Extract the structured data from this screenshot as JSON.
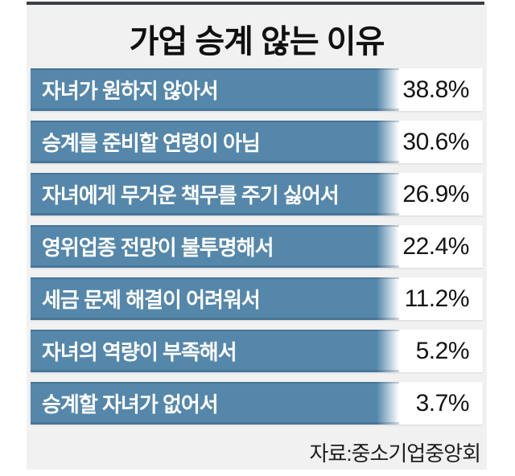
{
  "title": "가업 승계 않는 이유",
  "source": "자료:중소기업중앙회",
  "colors": {
    "bar": "#5587ab",
    "panel_background": "#f1f1f2",
    "top_rule": "#3b3f44",
    "bar_label_text": "#ffffff",
    "value_text": "#141414"
  },
  "chart_data": {
    "type": "bar",
    "orientation": "horizontal",
    "title": "가업 승계 않는 이유",
    "source": "자료:중소기업중앙회",
    "categories": [
      "자녀가 원하지 않아서",
      "승계를 준비할 연령이 아님",
      "자녀에게 무거운 책무를 주기 싫어서",
      "영위업종 전망이 불투명해서",
      "세금 문제 해결이 어려워서",
      "자녀의 역량이 부족해서",
      "승계할 자녀가 없어서"
    ],
    "values": [
      38.8,
      30.6,
      26.9,
      22.4,
      11.2,
      5.2,
      3.7
    ],
    "unit": "%",
    "layout_hints": {
      "uniform_bar_length": true,
      "value_position": "right-of-bar",
      "grid": false,
      "legend": false
    },
    "rows": [
      {
        "label": "자녀가 원하지 않아서",
        "value": "38.8%"
      },
      {
        "label": "승계를 준비할 연령이 아님",
        "value": "30.6%"
      },
      {
        "label": "자녀에게 무거운 책무를 주기 싫어서",
        "value": "26.9%"
      },
      {
        "label": "영위업종 전망이 불투명해서",
        "value": "22.4%"
      },
      {
        "label": "세금 문제 해결이 어려워서",
        "value": "11.2%"
      },
      {
        "label": "자녀의 역량이 부족해서",
        "value": "5.2%"
      },
      {
        "label": "승계할 자녀가 없어서",
        "value": "3.7%"
      }
    ]
  }
}
